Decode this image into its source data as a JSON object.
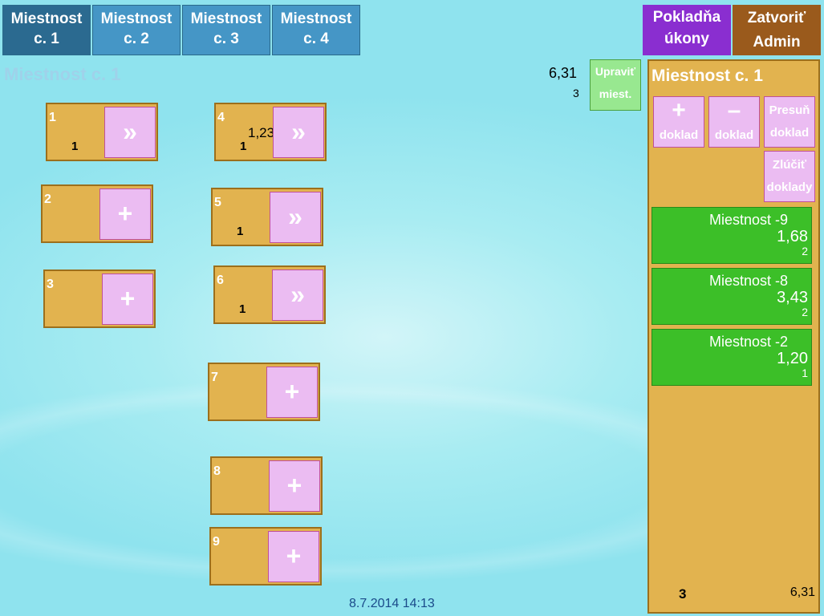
{
  "tabs": [
    {
      "label1": "Miestnost",
      "label2": "c. 1",
      "active": true
    },
    {
      "label1": "Miestnost",
      "label2": "c. 2"
    },
    {
      "label1": "Miestnost",
      "label2": "c. 3"
    },
    {
      "label1": "Miestnost",
      "label2": "c. 4"
    }
  ],
  "header": {
    "pokladna1": "Pokladňa",
    "pokladna2": "úkony",
    "zatvorit1": "Zatvoriť",
    "zatvorit2": "Admin",
    "pokladna_color": "#8a2ed0",
    "zatvorit_color": "#9a5a1c"
  },
  "room_title": "Miestnost c. 1",
  "room_total": "6,31",
  "room_count": "3",
  "edit_room": {
    "line1": "Upraviť",
    "line2": "miest."
  },
  "tables": [
    {
      "num": "1",
      "count": "1",
      "sum": "",
      "action": "»"
    },
    {
      "num": "2",
      "count": "",
      "sum": "",
      "action": "+"
    },
    {
      "num": "3",
      "count": "",
      "sum": "",
      "action": "+"
    },
    {
      "num": "4",
      "count": "1",
      "sum": "1,23",
      "action": "»"
    },
    {
      "num": "5",
      "count": "1",
      "sum": "",
      "action": "»"
    },
    {
      "num": "6",
      "count": "1",
      "sum": "",
      "action": "»"
    },
    {
      "num": "7",
      "count": "",
      "sum": "",
      "action": "+"
    },
    {
      "num": "8",
      "count": "",
      "sum": "",
      "action": "+"
    },
    {
      "num": "9",
      "count": "",
      "sum": "",
      "action": "+"
    }
  ],
  "panel": {
    "title": "Miestnost c. 1",
    "add": {
      "icon": "+",
      "label": "doklad"
    },
    "remove": {
      "icon": "–",
      "label": "doklad"
    },
    "move": {
      "l1": "Presuň",
      "l2": "doklad"
    },
    "merge": {
      "l1": "Zlúčiť",
      "l2": "doklady"
    },
    "orders": [
      {
        "name": "Miestnost -9",
        "sum": "1,68",
        "count": "2"
      },
      {
        "name": "Miestnost -8",
        "sum": "3,43",
        "count": "2"
      },
      {
        "name": "Miestnost -2",
        "sum": "1,20",
        "count": "1"
      }
    ],
    "footer_count": "3",
    "footer_total": "6,31"
  },
  "datetime": "8.7.2014 14:13"
}
